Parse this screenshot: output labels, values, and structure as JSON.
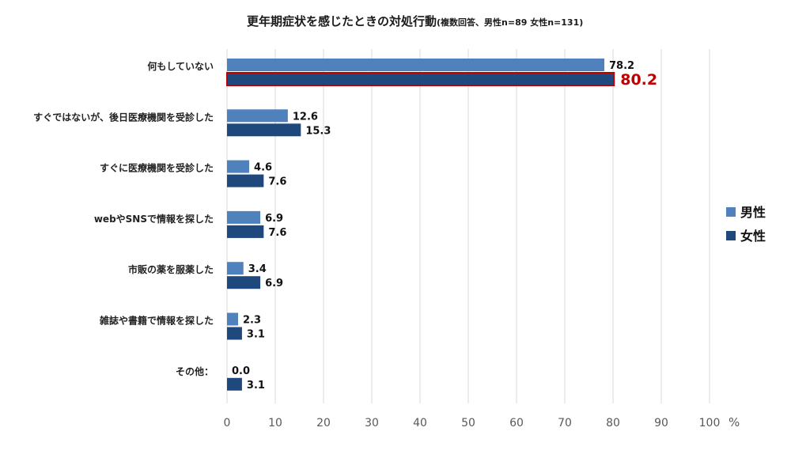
{
  "chart_data": {
    "type": "bar",
    "orientation": "horizontal",
    "title": "更年期症状を感じたときの対処行動",
    "subtitle": "(複数回答、男性n=89 女性n=131)",
    "categories": [
      "何もしていない",
      "すぐではないが、後日医療機関を受診した",
      "すぐに医療機関を受診した",
      "webやSNSで情報を探した",
      "市販の薬を服薬した",
      "雑誌や書籍で情報を探した",
      "その他："
    ],
    "series": [
      {
        "name": "男性",
        "color": "#4f81bd",
        "values": [
          78.2,
          12.6,
          4.6,
          6.9,
          3.4,
          2.3,
          0.0
        ]
      },
      {
        "name": "女性",
        "color": "#1f497d",
        "values": [
          80.2,
          15.3,
          7.6,
          7.6,
          6.9,
          3.1,
          3.1
        ]
      }
    ],
    "value_labels": [
      [
        "78.2",
        "12.6",
        "4.6",
        "6.9",
        "3.4",
        "2.3",
        "0.0"
      ],
      [
        "80.2",
        "15.3",
        "7.6",
        "7.6",
        "6.9",
        "3.1",
        "3.1"
      ]
    ],
    "highlight": {
      "series": 1,
      "category": 0,
      "color": "#c00000"
    },
    "xlim": [
      0,
      100
    ],
    "xticks": [
      "0",
      "10",
      "20",
      "30",
      "40",
      "50",
      "60",
      "70",
      "80",
      "90",
      "100"
    ],
    "xunit": "%",
    "grid": true,
    "legend": "right"
  }
}
